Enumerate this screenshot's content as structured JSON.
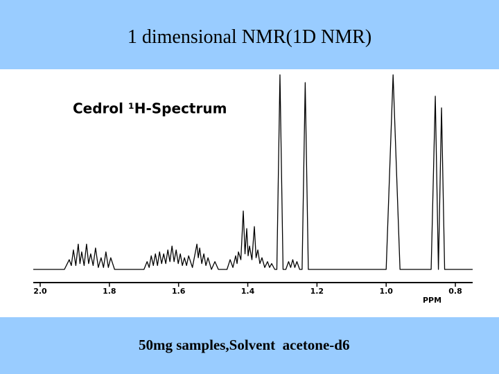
{
  "header": {
    "title": "1 dimensional NMR(1D NMR)"
  },
  "chart_data": {
    "type": "line",
    "title": "Cedrol ¹H-Spectrum",
    "xlabel": "PPM",
    "color": "#000000",
    "xlim": [
      2.02,
      0.75
    ],
    "ylim": [
      0,
      100
    ],
    "xticks": [
      {
        "value": 2.0,
        "label": "2.0"
      },
      {
        "value": 1.8,
        "label": "1.8"
      },
      {
        "value": 1.6,
        "label": "1.6"
      },
      {
        "value": 1.4,
        "label": "1.4"
      },
      {
        "value": 1.2,
        "label": "1.2"
      },
      {
        "value": 1.0,
        "label": "1.0"
      },
      {
        "value": 0.8,
        "label": "0.8"
      }
    ],
    "x": [
      2.02,
      1.93,
      1.916,
      1.91,
      1.904,
      1.897,
      1.89,
      1.885,
      1.88,
      1.873,
      1.866,
      1.86,
      1.854,
      1.847,
      1.84,
      1.832,
      1.824,
      1.817,
      1.81,
      1.803,
      1.796,
      1.785,
      1.7,
      1.691,
      1.685,
      1.679,
      1.673,
      1.667,
      1.661,
      1.655,
      1.649,
      1.643,
      1.637,
      1.631,
      1.625,
      1.619,
      1.613,
      1.607,
      1.601,
      1.595,
      1.589,
      1.583,
      1.577,
      1.571,
      1.56,
      1.547,
      1.543,
      1.539,
      1.533,
      1.527,
      1.521,
      1.515,
      1.505,
      1.495,
      1.485,
      1.46,
      1.451,
      1.443,
      1.435,
      1.431,
      1.427,
      1.42,
      1.413,
      1.408,
      1.403,
      1.399,
      1.395,
      1.388,
      1.381,
      1.376,
      1.371,
      1.365,
      1.359,
      1.351,
      1.343,
      1.337,
      1.331,
      1.322,
      1.316,
      1.307,
      1.298,
      1.29,
      1.282,
      1.276,
      1.27,
      1.264,
      1.258,
      1.25,
      1.243,
      1.234,
      1.225,
      1.0,
      0.98,
      0.96,
      0.87,
      0.858,
      0.849,
      0.84,
      0.831,
      0.75
    ],
    "values": [
      0,
      0,
      5,
      2,
      10,
      2,
      13,
      3,
      9,
      2,
      13,
      3,
      8,
      2,
      11,
      1,
      6,
      1,
      9,
      1,
      6,
      0,
      0,
      4,
      1,
      7,
      2,
      8,
      2,
      9,
      3,
      8,
      3,
      10,
      4,
      12,
      4,
      10,
      3,
      8,
      2,
      6,
      2,
      7,
      1,
      13,
      6,
      11,
      3,
      8,
      2,
      6,
      0,
      4,
      0,
      0,
      5,
      1,
      7,
      3,
      9,
      5,
      30,
      8,
      21,
      7,
      12,
      5,
      22,
      6,
      10,
      3,
      6,
      1,
      4,
      1,
      3,
      0,
      0,
      100,
      0,
      0,
      4,
      1,
      5,
      1,
      4,
      0,
      0,
      96,
      0,
      0,
      100,
      0,
      0,
      89,
      0,
      83,
      0,
      0
    ]
  },
  "footer": {
    "text": "50mg samples,Solvent  acetone-d6"
  }
}
